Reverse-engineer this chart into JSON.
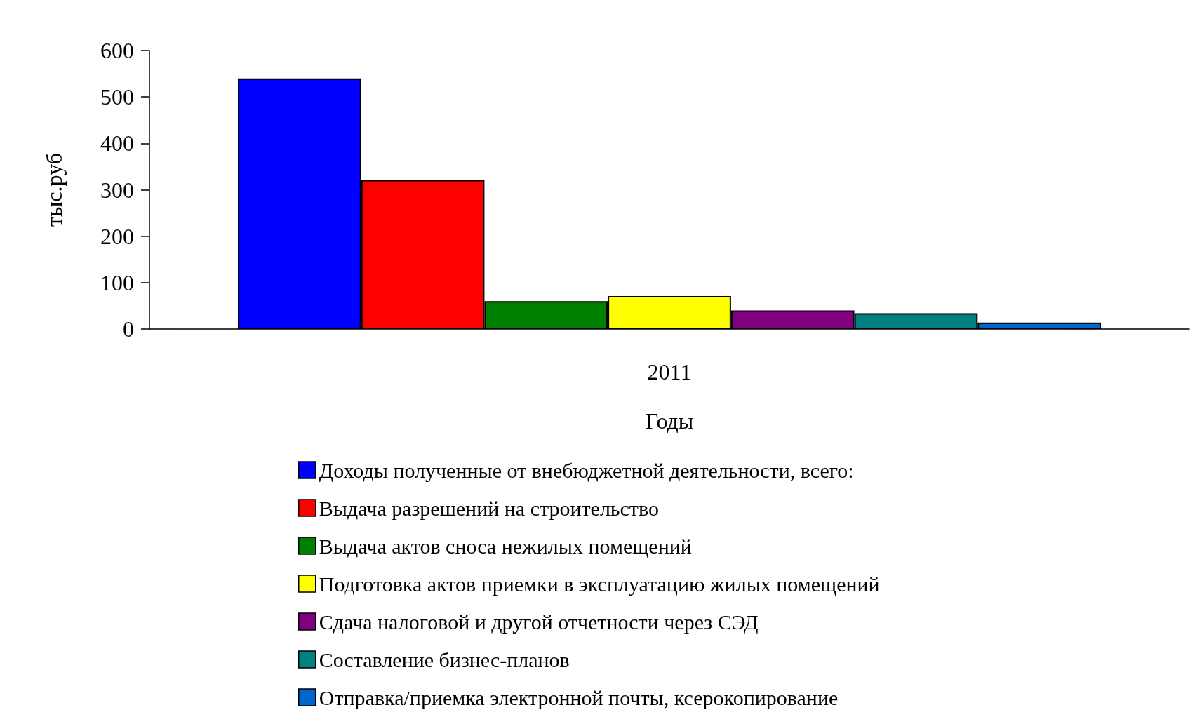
{
  "chart_data": {
    "type": "bar",
    "categories": [
      "2011"
    ],
    "xlabel": "Годы",
    "ylabel": "тыс.руб",
    "ylim": [
      0,
      600
    ],
    "yticks": [
      0,
      100,
      200,
      300,
      400,
      500,
      600
    ],
    "grid": false,
    "legend": "bottom",
    "series": [
      {
        "name": "Доходы полученные от внебюджетной деятельности, всего:",
        "color": "#0000ff",
        "values": [
          540
        ]
      },
      {
        "name": "Выдача разрешений на строительство",
        "color": "#ff0000",
        "values": [
          321
        ]
      },
      {
        "name": "Выдача актов сноса нежилых помещений",
        "color": "#008000",
        "values": [
          60
        ]
      },
      {
        "name": "Подготовка актов приемки в эксплуатацию жилых помещений",
        "color": "#ffff00",
        "values": [
          71
        ]
      },
      {
        "name": "Сдача налоговой и другой отчетности через СЭД",
        "color": "#800080",
        "values": [
          40
        ]
      },
      {
        "name": "Составление бизнес-планов",
        "color": "#008080",
        "values": [
          34
        ]
      },
      {
        "name": "Отправка/приемка электронной почты, ксерокопирование",
        "color": "#0066cc",
        "values": [
          14
        ]
      }
    ]
  }
}
